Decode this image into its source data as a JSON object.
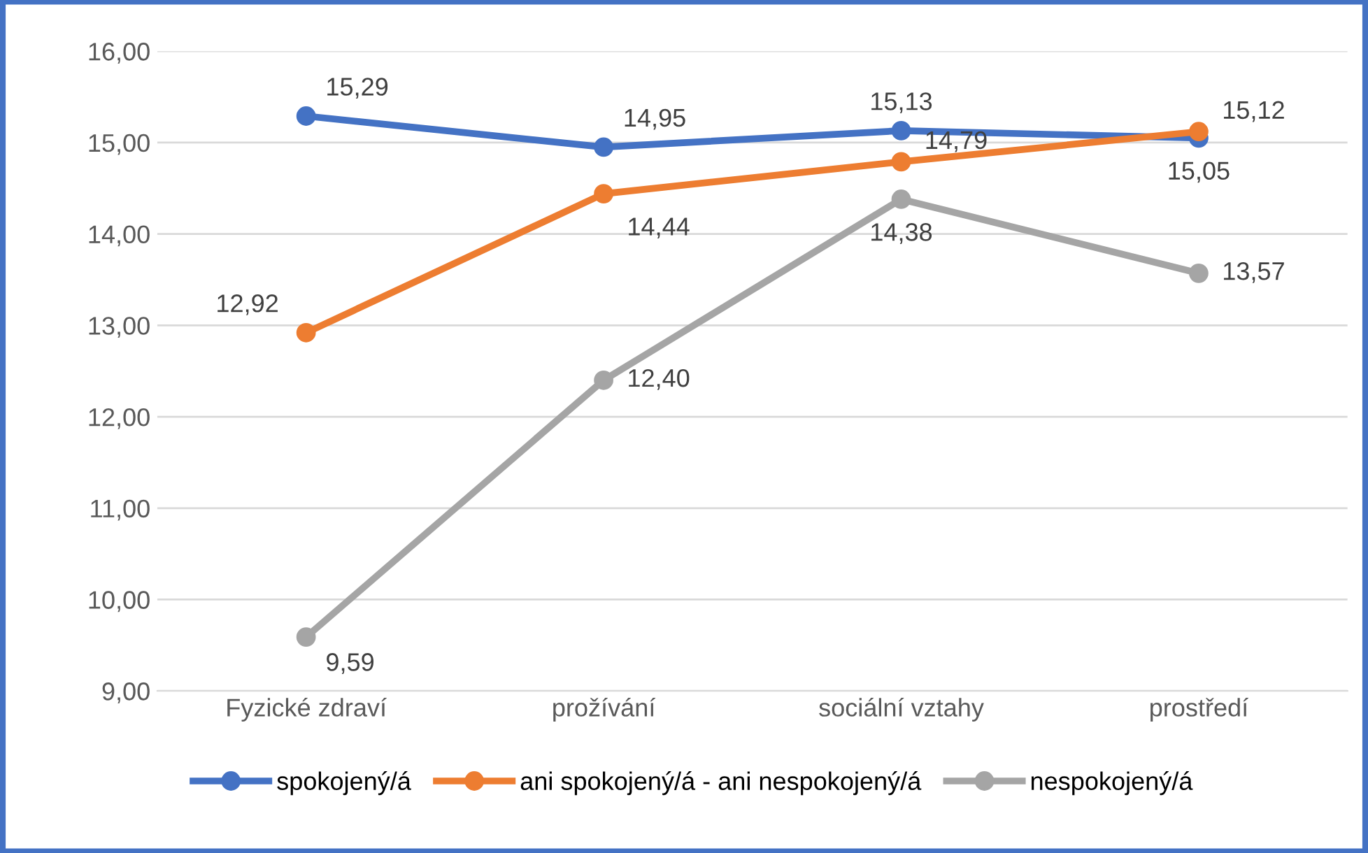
{
  "chart_data": {
    "type": "line",
    "categories": [
      "Fyzické zdraví",
      "prožívání",
      "sociální vztahy",
      "prostředí"
    ],
    "series": [
      {
        "name": "spokojený/á",
        "color": "#4472c4",
        "values": [
          15.29,
          14.95,
          15.13,
          15.05
        ],
        "value_labels": [
          "15,29",
          "14,95",
          "15,13",
          "15,05"
        ]
      },
      {
        "name": "ani spokojený/á - ani nespokojený/á",
        "color": "#ed7d31",
        "values": [
          12.92,
          14.44,
          14.79,
          15.12
        ],
        "value_labels": [
          "12,92",
          "14,44",
          "14,79",
          "15,12"
        ]
      },
      {
        "name": "nespokojený/á",
        "color": "#a5a5a5",
        "values": [
          9.59,
          12.4,
          14.38,
          13.57
        ],
        "value_labels": [
          "9,59",
          "12,40",
          "14,38",
          "13,57"
        ]
      }
    ],
    "ylim": [
      9,
      16
    ],
    "yticks": [
      {
        "value": 9,
        "label": "9,00"
      },
      {
        "value": 10,
        "label": "10,00"
      },
      {
        "value": 11,
        "label": "11,00"
      },
      {
        "value": 12,
        "label": "12,00"
      },
      {
        "value": 13,
        "label": "13,00"
      },
      {
        "value": 14,
        "label": "14,00"
      },
      {
        "value": 15,
        "label": "15,00"
      },
      {
        "value": 16,
        "label": "16,00"
      }
    ],
    "grid": "y",
    "legend": "bottom",
    "marker": "circle",
    "line_style": "solid"
  }
}
